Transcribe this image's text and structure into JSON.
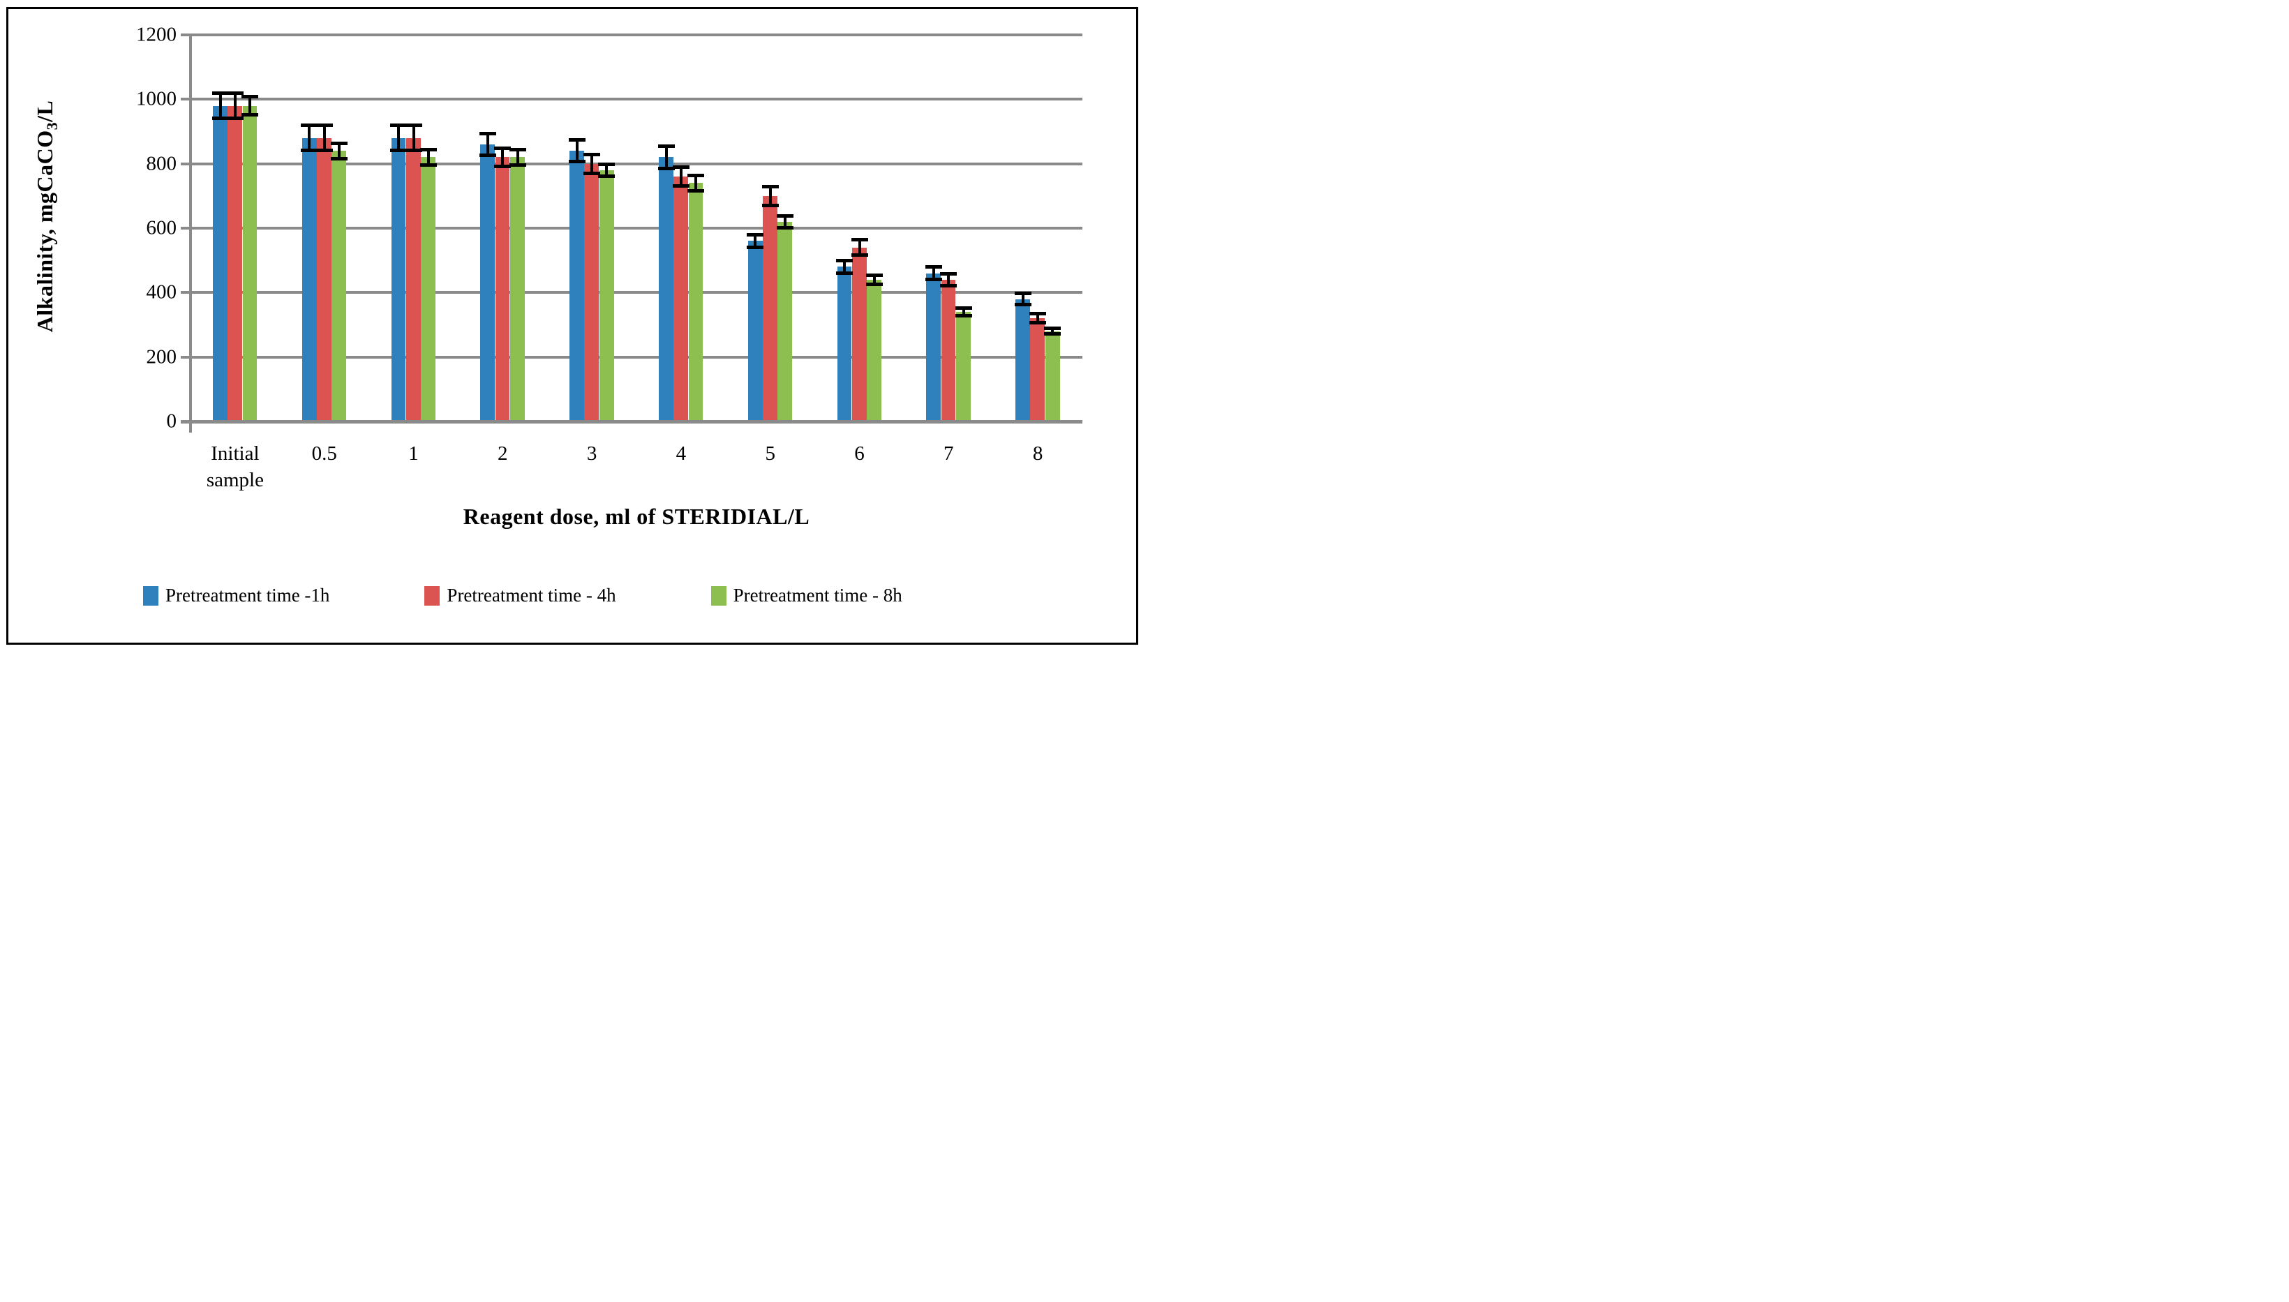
{
  "figure": {
    "border_color": "#000000",
    "background": "#ffffff"
  },
  "chart_data": {
    "type": "bar",
    "title": "",
    "xlabel": "Reagent dose, ml of STERIDIAL/L",
    "ylabel": "Alkalinity, mgCaCO3/L",
    "ylabel_parts": {
      "prefix": "Alkalinity, mgCaCO",
      "sub": "3",
      "suffix": "/L"
    },
    "categories": [
      "Initial sample",
      "0.5",
      "1",
      "2",
      "3",
      "4",
      "5",
      "6",
      "7",
      "8"
    ],
    "series": [
      {
        "name": "Pretreatment time -1h",
        "color": "#2E81BD",
        "values": [
          980,
          880,
          880,
          860,
          840,
          820,
          560,
          480,
          460,
          380
        ],
        "errors": [
          40,
          40,
          40,
          35,
          35,
          35,
          20,
          20,
          20,
          18
        ]
      },
      {
        "name": "Pretreatment time - 4h",
        "color": "#DB5452",
        "values": [
          980,
          880,
          880,
          820,
          800,
          760,
          700,
          540,
          440,
          320
        ],
        "errors": [
          40,
          40,
          40,
          30,
          30,
          30,
          30,
          25,
          20,
          15
        ]
      },
      {
        "name": "Pretreatment time - 8h",
        "color": "#8CBE50",
        "values": [
          980,
          840,
          820,
          820,
          780,
          740,
          620,
          440,
          340,
          280
        ],
        "errors": [
          30,
          25,
          25,
          25,
          20,
          25,
          20,
          15,
          12,
          10
        ]
      }
    ],
    "ylim": [
      0,
      1200
    ],
    "y_ticks": [
      1200,
      1000,
      800,
      600,
      400,
      200,
      0
    ],
    "grid": "horizontal",
    "gridline_color": "#8A8A8A",
    "error_bar_color": "#000000",
    "legend_position": "bottom"
  }
}
